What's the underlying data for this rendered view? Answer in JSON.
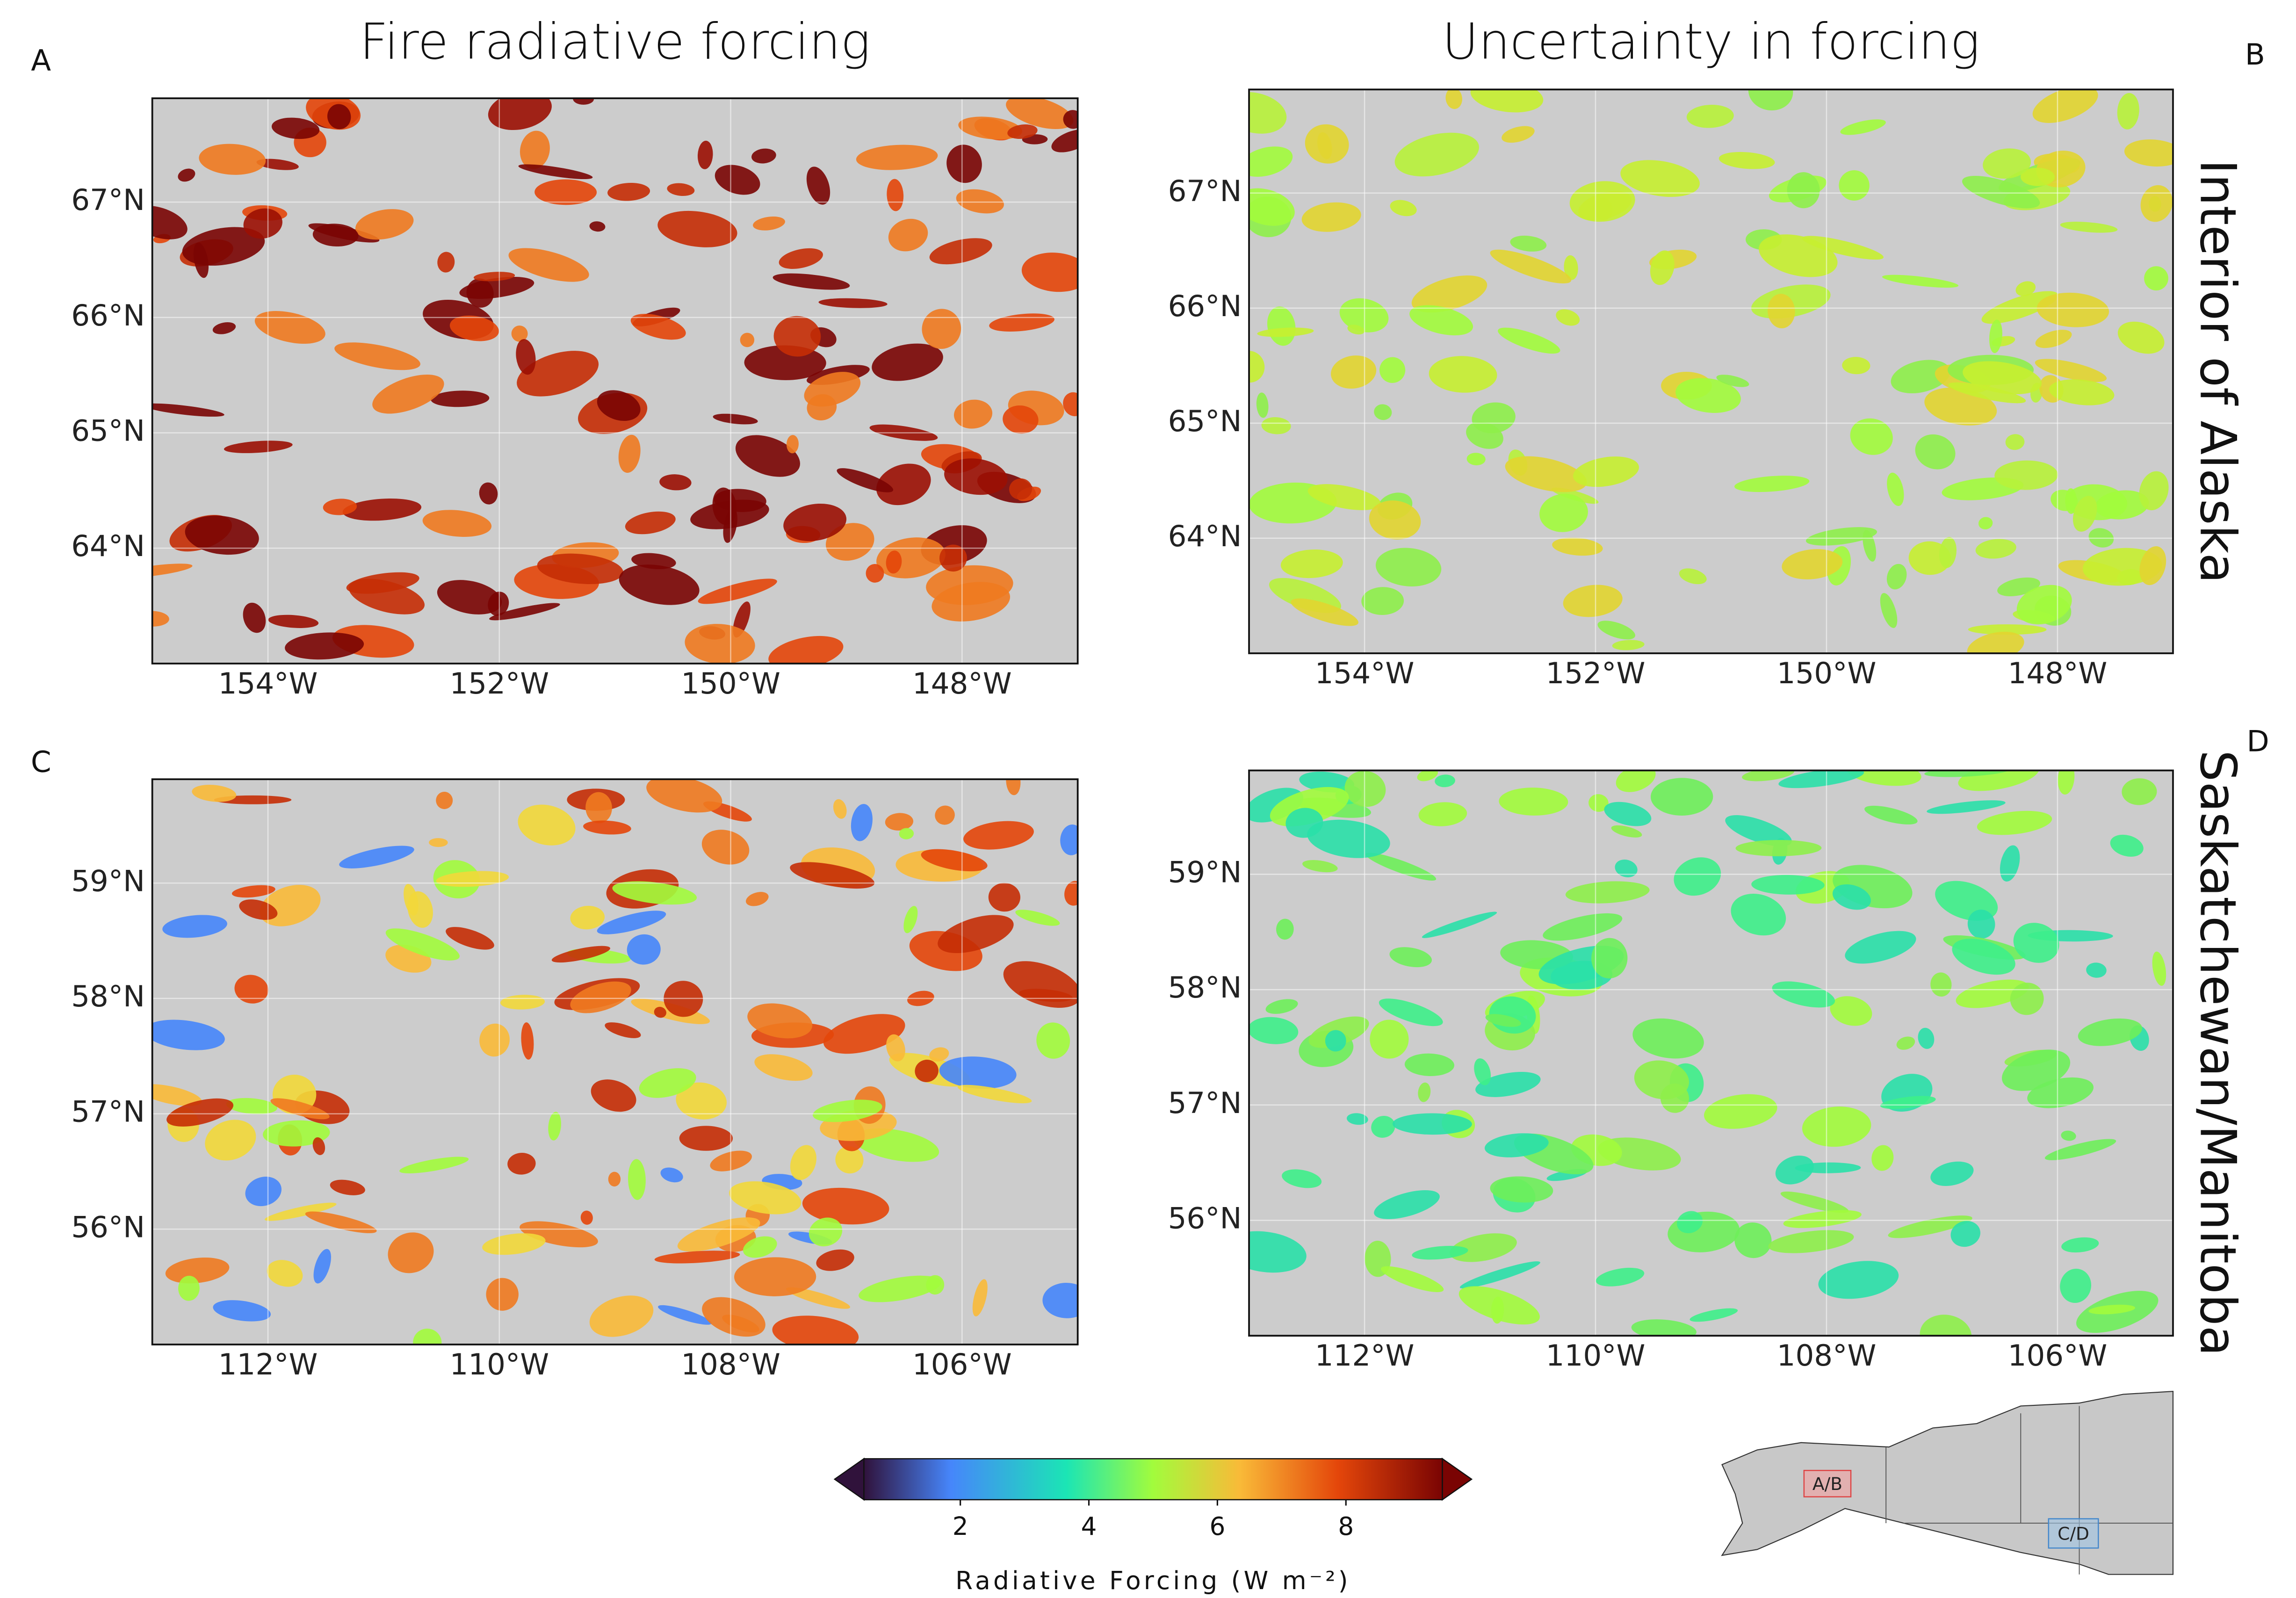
{
  "panels": [
    {
      "letter": "A",
      "title": "Fire radiative forcing",
      "xlim": [
        -155,
        -147
      ],
      "ylim": [
        63,
        67.9
      ],
      "xticks": [
        {
          "value": -154,
          "label": "154°W"
        },
        {
          "value": -152,
          "label": "152°W"
        },
        {
          "value": -150,
          "label": "150°W"
        },
        {
          "value": -148,
          "label": "148°W"
        }
      ],
      "yticks": [
        {
          "value": 64,
          "label": "64°N"
        },
        {
          "value": 65,
          "label": "65°N"
        },
        {
          "value": 66,
          "label": "66°N"
        },
        {
          "value": 67,
          "label": "67°N"
        }
      ]
    },
    {
      "letter": "B",
      "title": "Uncertainty in forcing",
      "row_label": "Interior of Alaska",
      "xlim": [
        -155,
        -147
      ],
      "ylim": [
        63,
        67.9
      ],
      "xticks": [
        {
          "value": -154,
          "label": "154°W"
        },
        {
          "value": -152,
          "label": "152°W"
        },
        {
          "value": -150,
          "label": "150°W"
        },
        {
          "value": -148,
          "label": "148°W"
        }
      ],
      "yticks": [
        {
          "value": 64,
          "label": "64°N"
        },
        {
          "value": 65,
          "label": "65°N"
        },
        {
          "value": 66,
          "label": "66°N"
        },
        {
          "value": 67,
          "label": "67°N"
        }
      ]
    },
    {
      "letter": "C",
      "xlim": [
        -113,
        -105
      ],
      "ylim": [
        55,
        59.9
      ],
      "xticks": [
        {
          "value": -112,
          "label": "112°W"
        },
        {
          "value": -110,
          "label": "110°W"
        },
        {
          "value": -108,
          "label": "108°W"
        },
        {
          "value": -106,
          "label": "106°W"
        }
      ],
      "yticks": [
        {
          "value": 56,
          "label": "56°N"
        },
        {
          "value": 57,
          "label": "57°N"
        },
        {
          "value": 58,
          "label": "58°N"
        },
        {
          "value": 59,
          "label": "59°N"
        }
      ]
    },
    {
      "letter": "D",
      "row_label": "Saskatchewan/Manitoba",
      "xlim": [
        -113,
        -105
      ],
      "ylim": [
        55,
        59.9
      ],
      "xticks": [
        {
          "value": -112,
          "label": "112°W"
        },
        {
          "value": -110,
          "label": "110°W"
        },
        {
          "value": -108,
          "label": "108°W"
        },
        {
          "value": -106,
          "label": "106°W"
        }
      ],
      "yticks": [
        {
          "value": 56,
          "label": "56°N"
        },
        {
          "value": 57,
          "label": "57°N"
        },
        {
          "value": 58,
          "label": "58°N"
        },
        {
          "value": 59,
          "label": "59°N"
        }
      ]
    }
  ],
  "colorbar": {
    "label": "Radiative Forcing (W m⁻²)",
    "lim": [
      0.5,
      9.5
    ],
    "ticks": [
      2,
      4,
      6,
      8
    ]
  },
  "inset": {
    "labels": [
      "A/B",
      "C/D"
    ]
  }
}
